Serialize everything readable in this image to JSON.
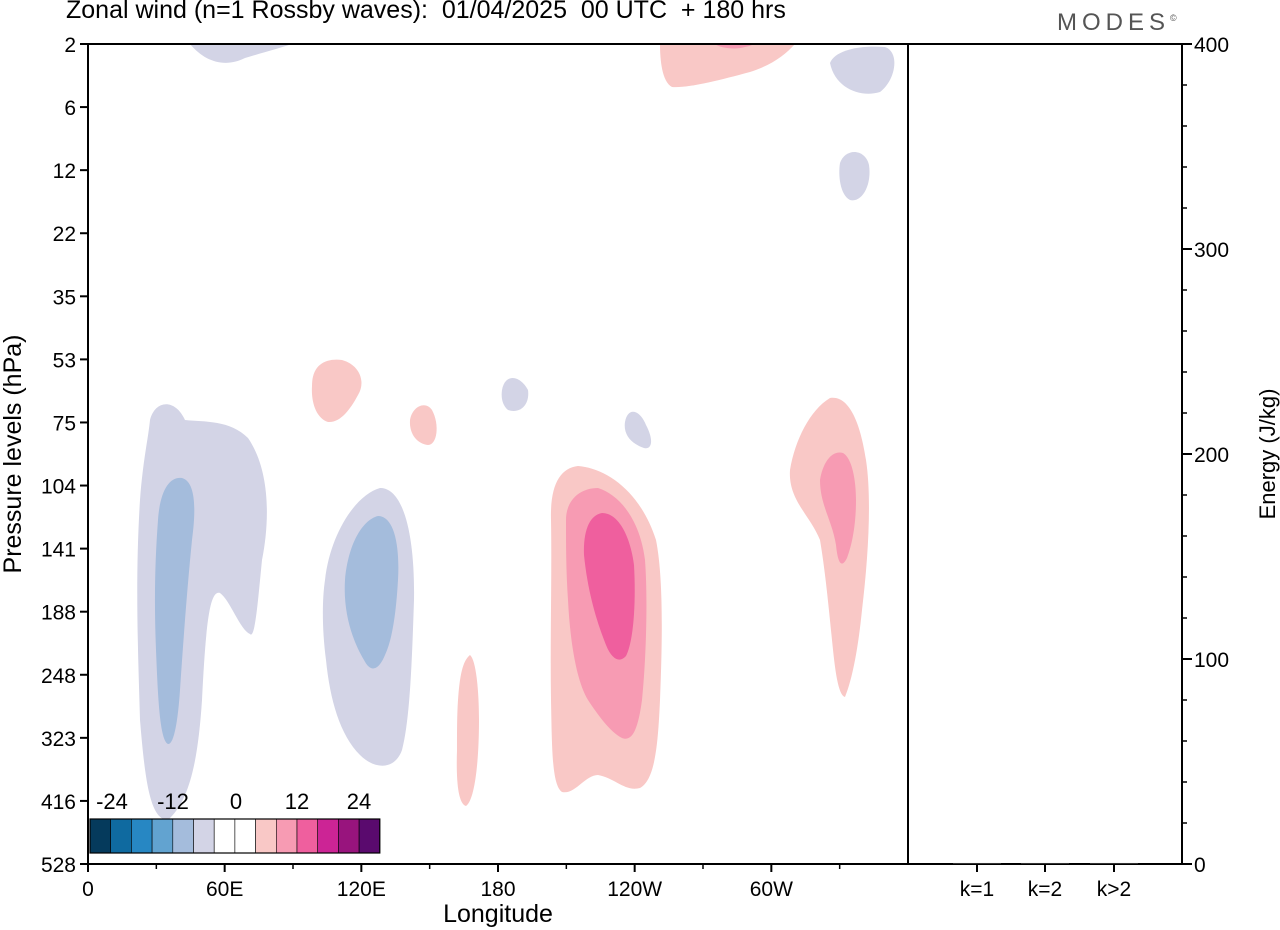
{
  "title": "Zonal wind (n=1 Rossby waves):  01/04/2025  00 UTC  + 180 hrs",
  "logo": "MODES",
  "logo_mark": "©",
  "chart_data": [
    {
      "type": "contour",
      "xlabel": "Longitude",
      "ylabel": "Pressure levels (hPa)",
      "x_ticks": [
        "0",
        "60E",
        "120E",
        "180",
        "120W",
        "60W"
      ],
      "y_ticks": [
        "2",
        "6",
        "12",
        "22",
        "35",
        "53",
        "75",
        "104",
        "141",
        "188",
        "248",
        "323",
        "416",
        "528"
      ],
      "colorbar": {
        "labels": [
          "-24",
          "-12",
          "0",
          "12",
          "24"
        ],
        "colors": [
          "#053a5c",
          "#0f6aa0",
          "#2787c3",
          "#62a3d0",
          "#a4bcdc",
          "#d3d4e6",
          "#ffffff",
          "#ffffff",
          "#f9c8c6",
          "#f79bb3",
          "#ef5f9e",
          "#cc2495",
          "#98147d",
          "#5a0a6e"
        ]
      },
      "features": [
        {
          "sign": "negative",
          "level": -4,
          "lon": 40,
          "p": 188
        },
        {
          "sign": "negative",
          "level": -8,
          "lon": 37,
          "p": 188
        },
        {
          "sign": "negative",
          "level": -4,
          "lon": 122,
          "p": 200
        },
        {
          "sign": "negative",
          "level": -8,
          "lon": 123,
          "p": 160
        },
        {
          "sign": "positive",
          "level": 4,
          "lon": 228,
          "p": 170
        },
        {
          "sign": "positive",
          "level": 8,
          "lon": 230,
          "p": 180
        },
        {
          "sign": "positive",
          "level": 12,
          "lon": 233,
          "p": 150
        },
        {
          "sign": "positive",
          "level": 4,
          "lon": 330,
          "p": 120
        },
        {
          "sign": "positive",
          "level": 8,
          "lon": 330,
          "p": 104
        },
        {
          "sign": "positive",
          "level": 4,
          "lon": 168,
          "p": 320
        }
      ]
    },
    {
      "type": "bar",
      "categories": [
        "k=1",
        "k=2",
        "k>2"
      ],
      "values": [
        0.5,
        0.5,
        0.5
      ],
      "ylabel": "Energy (J/kg)",
      "ylim": [
        0,
        400
      ],
      "y_ticks": [
        "0",
        "100",
        "200",
        "300",
        "400"
      ]
    }
  ]
}
